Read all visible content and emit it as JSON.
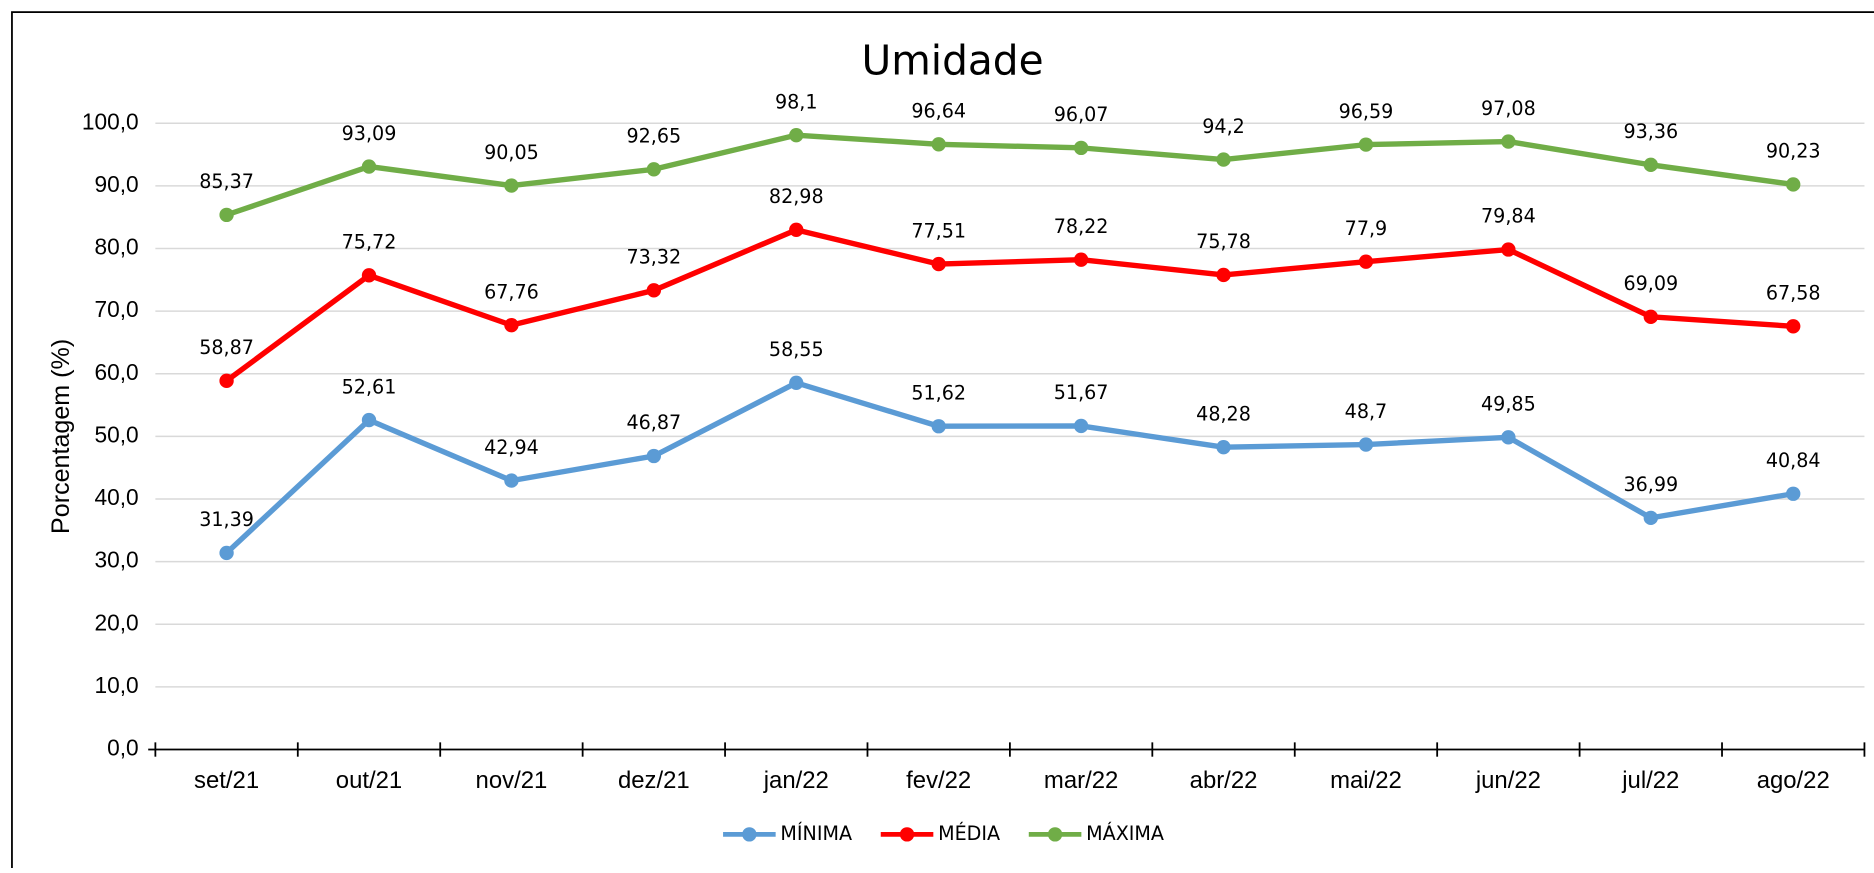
{
  "chart_data": {
    "type": "line",
    "title": "Umidade",
    "y_label": "Porcentagem (%)",
    "categories": [
      "set/21",
      "out/21",
      "nov/21",
      "dez/21",
      "jan/22",
      "fev/22",
      "mar/22",
      "abr/22",
      "mai/22",
      "jun/22",
      "jul/22",
      "ago/22"
    ],
    "series": [
      {
        "name": "MÍNIMA",
        "color": "#5b9bd5",
        "values": [
          31.39,
          52.61,
          42.94,
          46.87,
          58.55,
          51.62,
          51.67,
          48.28,
          48.7,
          49.85,
          36.99,
          40.84
        ],
        "value_labels": [
          "31,39",
          "52,61",
          "42,94",
          "46,87",
          "58,55",
          "51,62",
          "51,67",
          "48,28",
          "48,7",
          "49,85",
          "36,99",
          "40,84"
        ]
      },
      {
        "name": "MÉDIA",
        "color": "#ff0000",
        "values": [
          58.87,
          75.72,
          67.76,
          73.32,
          82.98,
          77.51,
          78.22,
          75.78,
          77.9,
          79.84,
          69.09,
          67.58
        ],
        "value_labels": [
          "58,87",
          "75,72",
          "67,76",
          "73,32",
          "82,98",
          "77,51",
          "78,22",
          "75,78",
          "77,9",
          "79,84",
          "69,09",
          "67,58"
        ]
      },
      {
        "name": "MÁXIMA",
        "color": "#70ad47",
        "values": [
          85.37,
          93.09,
          90.05,
          92.65,
          98.1,
          96.64,
          96.07,
          94.2,
          96.59,
          97.08,
          93.36,
          90.23
        ],
        "value_labels": [
          "85,37",
          "93,09",
          "90,05",
          "92,65",
          "98,1",
          "96,64",
          "96,07",
          "94,2",
          "96,59",
          "97,08",
          "93,36",
          "90,23"
        ]
      }
    ],
    "ylim": [
      0,
      100
    ],
    "yticks": [
      {
        "value": 0,
        "label": "0,0"
      },
      {
        "value": 10,
        "label": "10,0"
      },
      {
        "value": 20,
        "label": "20,0"
      },
      {
        "value": 30,
        "label": "30,0"
      },
      {
        "value": 40,
        "label": "40,0"
      },
      {
        "value": 50,
        "label": "50,0"
      },
      {
        "value": 60,
        "label": "60,0"
      },
      {
        "value": 70,
        "label": "70,0"
      },
      {
        "value": 80,
        "label": "80,0"
      },
      {
        "value": 90,
        "label": "90,0"
      },
      {
        "value": 100,
        "label": "100,0"
      }
    ],
    "grid": true,
    "legend": "bottom"
  }
}
